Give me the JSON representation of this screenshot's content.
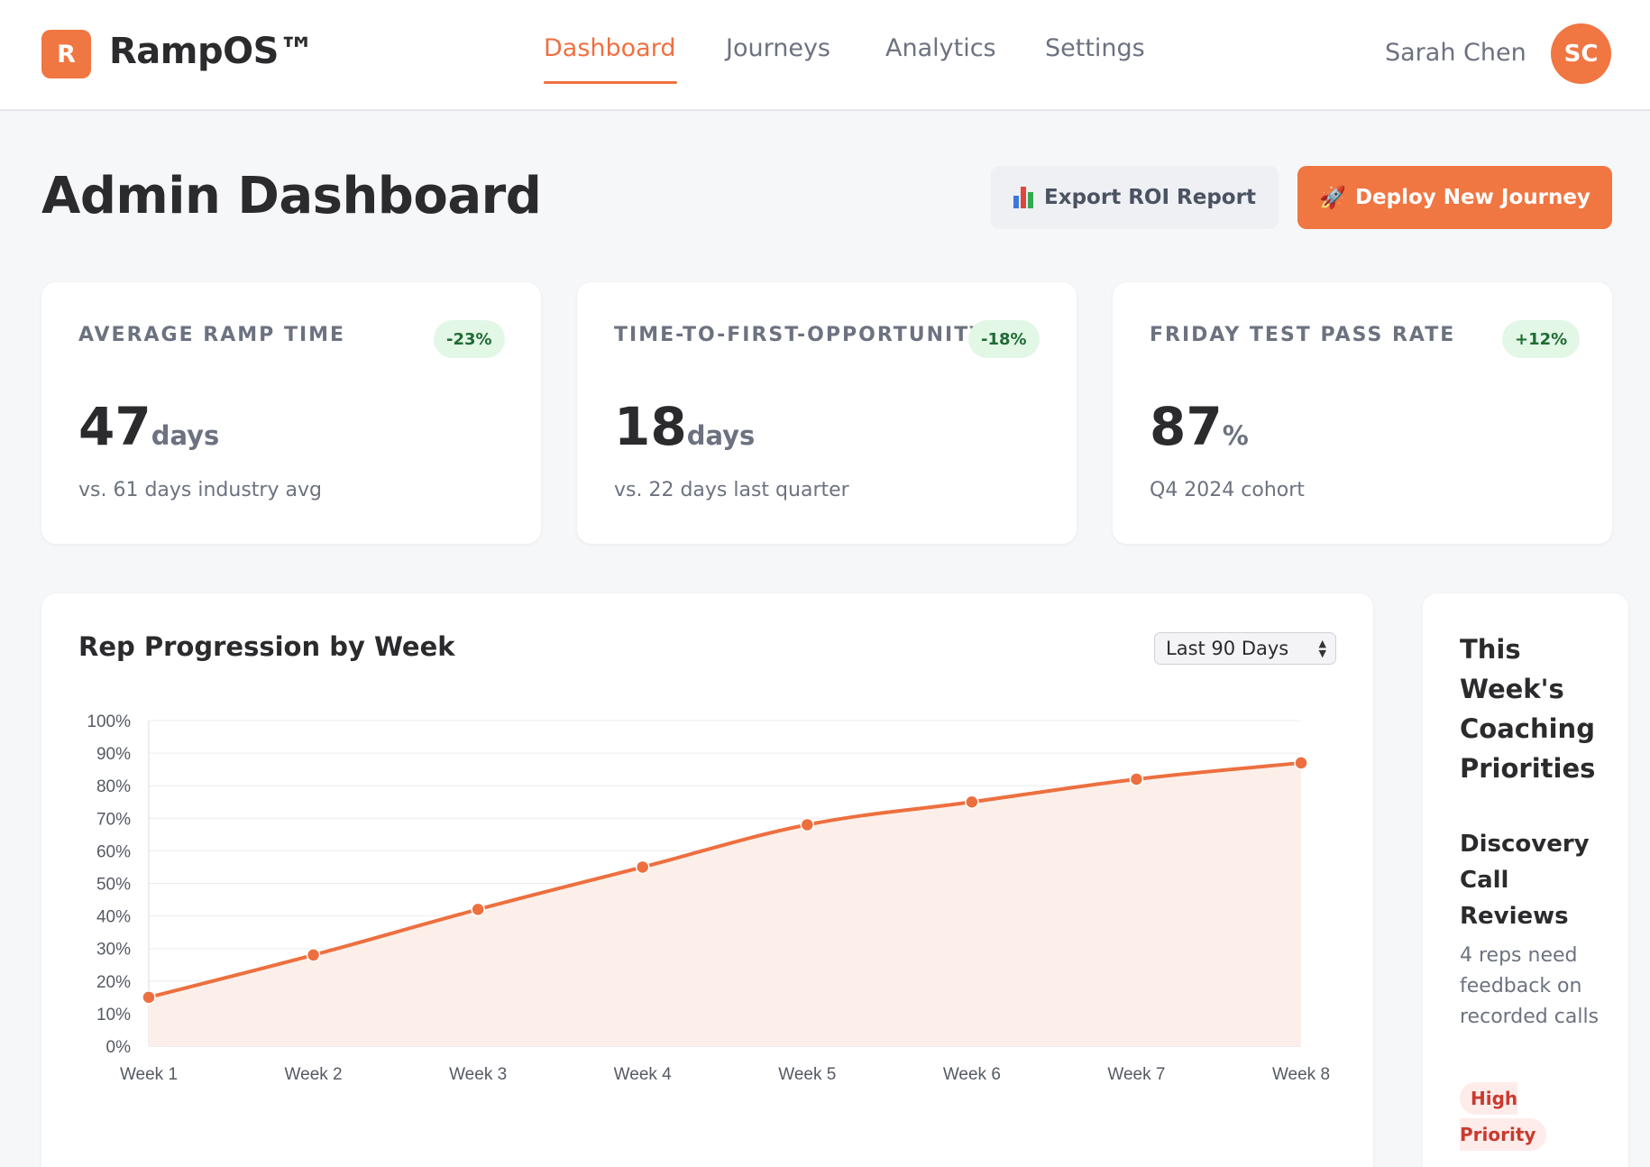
{
  "brand": {
    "logo_letter": "R",
    "name": "RampOS™",
    "accent_color": "#f07642"
  },
  "nav": {
    "items": [
      {
        "label": "Dashboard",
        "active": true
      },
      {
        "label": "Journeys",
        "active": false
      },
      {
        "label": "Analytics",
        "active": false
      },
      {
        "label": "Settings",
        "active": false
      }
    ]
  },
  "user": {
    "name": "Sarah Chen",
    "initials": "SC"
  },
  "header": {
    "title": "Admin Dashboard",
    "export_label": "Export ROI Report",
    "export_icon": "bar-chart-icon",
    "deploy_label": "Deploy New Journey",
    "deploy_icon": "rocket-icon"
  },
  "stats": [
    {
      "label": "AVERAGE RAMP TIME",
      "badge": "-23%",
      "value": "47",
      "unit": "days",
      "sub": "vs. 61 days industry avg"
    },
    {
      "label": "TIME-TO-FIRST-OPPORTUNITY",
      "badge": "-18%",
      "value": "18",
      "unit": "days",
      "sub": "vs. 22 days last quarter"
    },
    {
      "label": "FRIDAY TEST PASS RATE",
      "badge": "+12%",
      "value": "87",
      "unit": "%",
      "sub": "Q4 2024 cohort"
    }
  ],
  "chart": {
    "title": "Rep Progression by Week",
    "range_selected": "Last 90 Days"
  },
  "chart_data": {
    "type": "area",
    "categories": [
      "Week 1",
      "Week 2",
      "Week 3",
      "Week 4",
      "Week 5",
      "Week 6",
      "Week 7",
      "Week 8"
    ],
    "values": [
      15,
      28,
      42,
      55,
      68,
      75,
      82,
      87
    ],
    "ylim": [
      0,
      100
    ],
    "yticks": [
      "0%",
      "10%",
      "20%",
      "30%",
      "40%",
      "50%",
      "60%",
      "70%",
      "80%",
      "90%",
      "100%"
    ],
    "grid": true,
    "line_color": "#ed6f3f",
    "fill_color": "#fcefe9"
  },
  "coaching": {
    "title": "This Week's Coaching Priorities",
    "item_title": "Discovery Call Reviews",
    "item_desc": "4 reps need feedback on recorded calls",
    "priority": "High Priority"
  }
}
